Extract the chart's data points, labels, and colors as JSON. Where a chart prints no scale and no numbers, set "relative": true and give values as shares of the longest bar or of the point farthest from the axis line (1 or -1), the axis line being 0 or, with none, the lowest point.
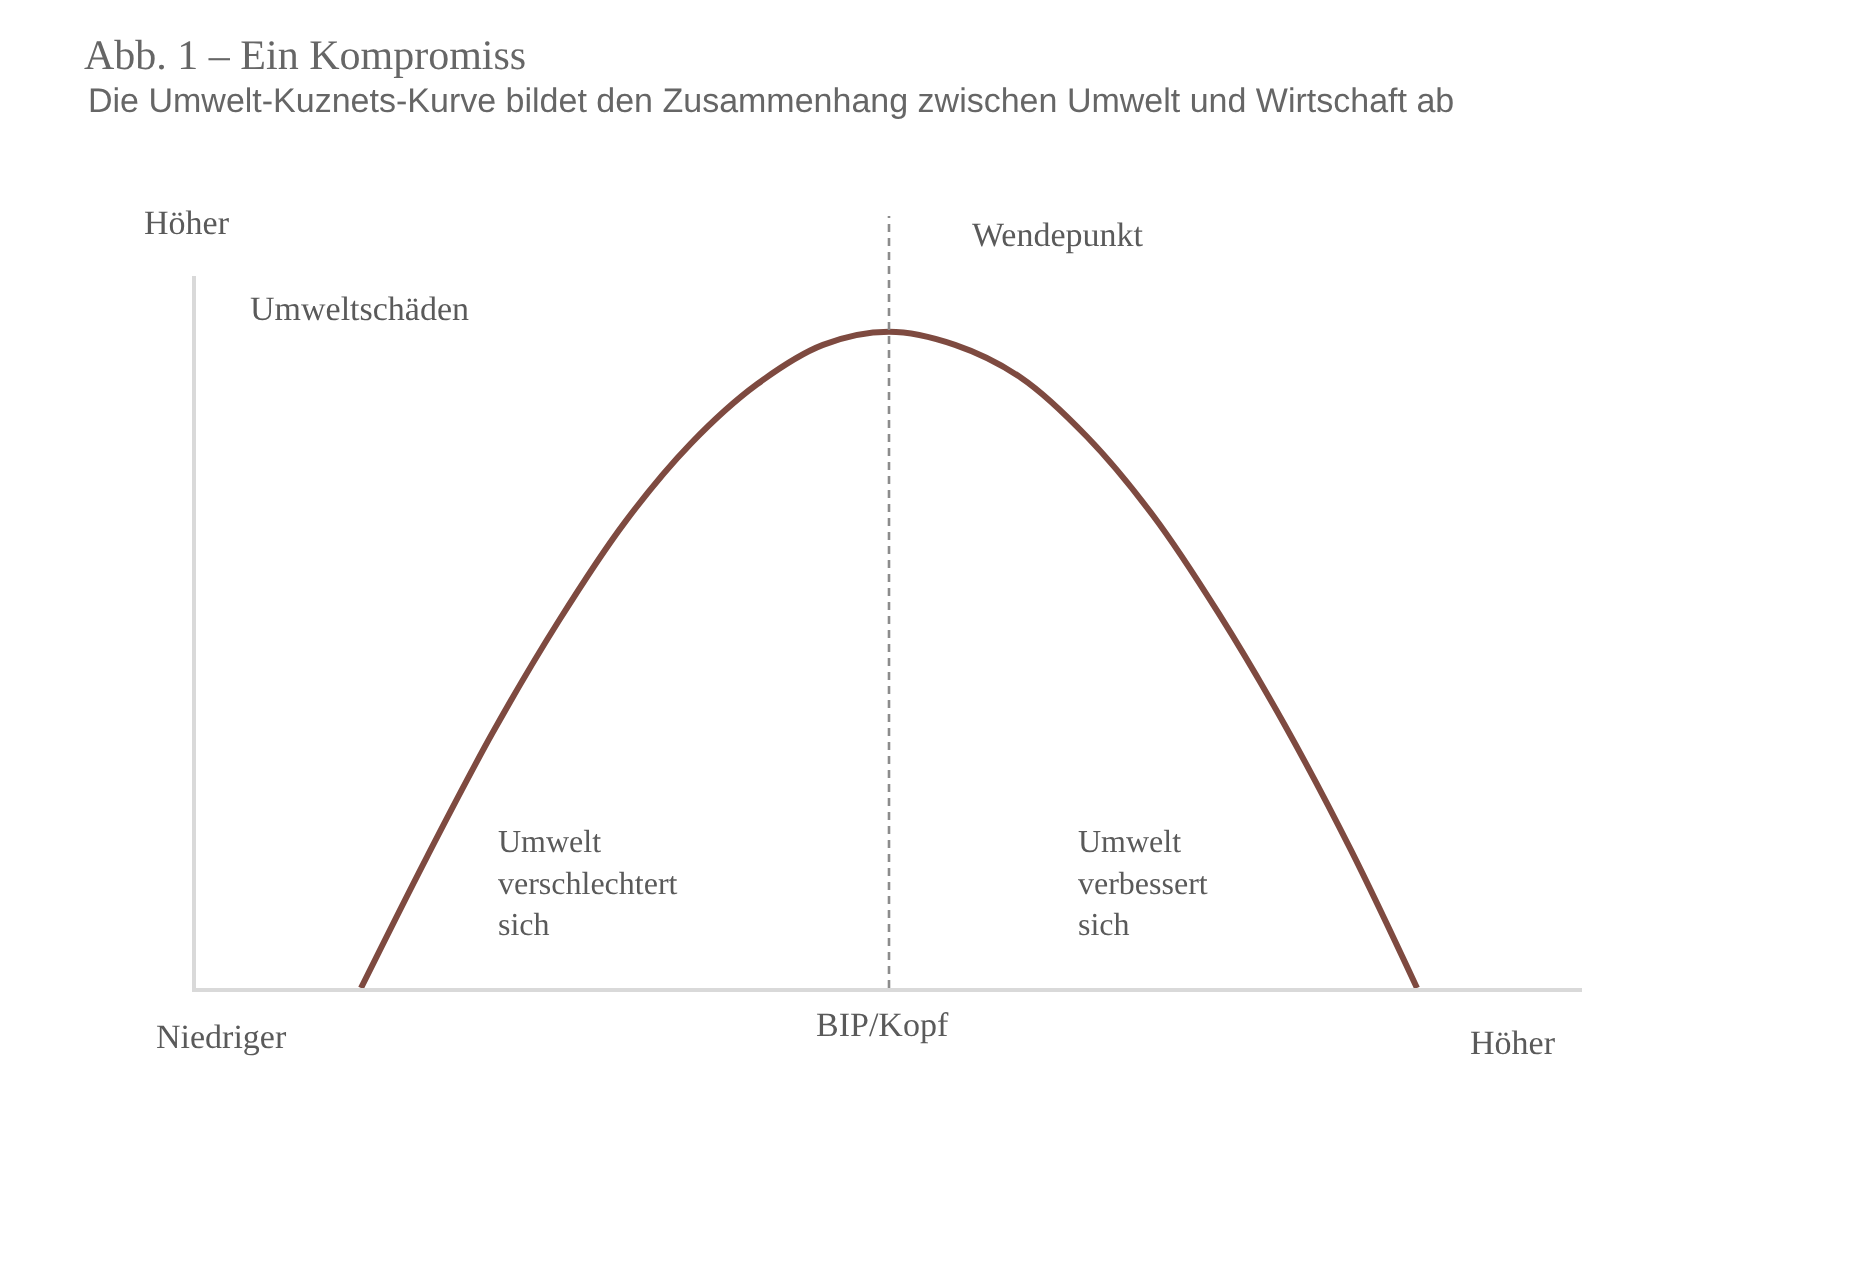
{
  "chart_data": {
    "type": "line",
    "title": "Abb. 1 – Ein Kompromiss",
    "subtitle": "Die Umwelt-Kuznets-Kurve bildet den Zusammenhang zwischen Umwelt und Wirtschaft ab",
    "xlabel": "BIP/Kopf",
    "ylabel": "Umweltschäden",
    "categories": [
      null,
      null,
      null,
      null,
      null,
      null,
      null,
      null,
      null,
      null,
      null,
      null,
      null,
      null,
      null,
      null,
      null,
      null,
      null,
      null,
      null
    ],
    "series": [
      {
        "color": "#7e4a40",
        "values": [
          null,
          null,
          0,
          0.2,
          0.39,
          0.56,
          0.71,
          0.83,
          0.92,
          0.98,
          1,
          0.98,
          0.93,
          0.84,
          0.72,
          0.57,
          0.4,
          0.21,
          0,
          null,
          null
        ]
      }
    ],
    "relative": true,
    "annotations": [
      "Höher",
      "Wendepunkt",
      "Umwelt\nverschlechtert\nsich",
      "Umwelt\nverbessert\nsich",
      "Niedriger",
      "Höher"
    ]
  }
}
